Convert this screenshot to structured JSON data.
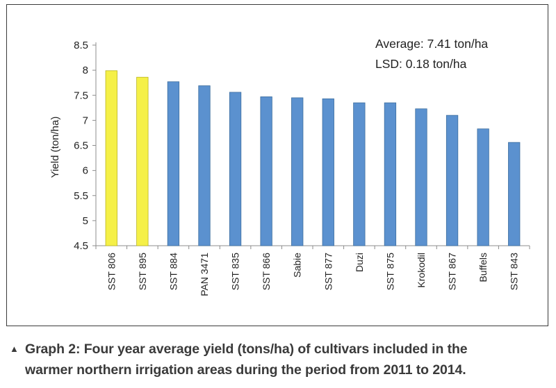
{
  "chart_data": {
    "type": "bar",
    "categories": [
      "SST 806",
      "SST 895",
      "SST 884",
      "PAN 3471",
      "SST 835",
      "SST 866",
      "Sabie",
      "SST 877",
      "Duzi",
      "SST 875",
      "Krokodil",
      "SST 867",
      "Buffels",
      "SST 843"
    ],
    "values": [
      7.99,
      7.86,
      7.77,
      7.69,
      7.56,
      7.47,
      7.45,
      7.43,
      7.35,
      7.35,
      7.23,
      7.1,
      6.83,
      6.56
    ],
    "highlight": [
      true,
      true,
      false,
      false,
      false,
      false,
      false,
      false,
      false,
      false,
      false,
      false,
      false,
      false
    ],
    "ylabel": "Yield (ton/ha)",
    "ylim": [
      4.5,
      8.5
    ],
    "yticks": [
      "4.5",
      "5",
      "5.5",
      "6",
      "6.5",
      "7",
      "7.5",
      "8",
      "8.5"
    ],
    "annotations": [
      "Average: 7.41 ton/ha",
      "LSD: 0.18 ton/ha"
    ],
    "colors": {
      "bar": "#5b91cf",
      "bar_edge": "#3e6f9f",
      "highlight": "#f5f047",
      "highlight_edge": "#b9b420"
    }
  },
  "caption": {
    "line1": "Graph 2: Four year average yield (tons/ha) of cultivars included in the",
    "line2": "warmer northern irrigation areas during the period from 2011 to 2014."
  }
}
